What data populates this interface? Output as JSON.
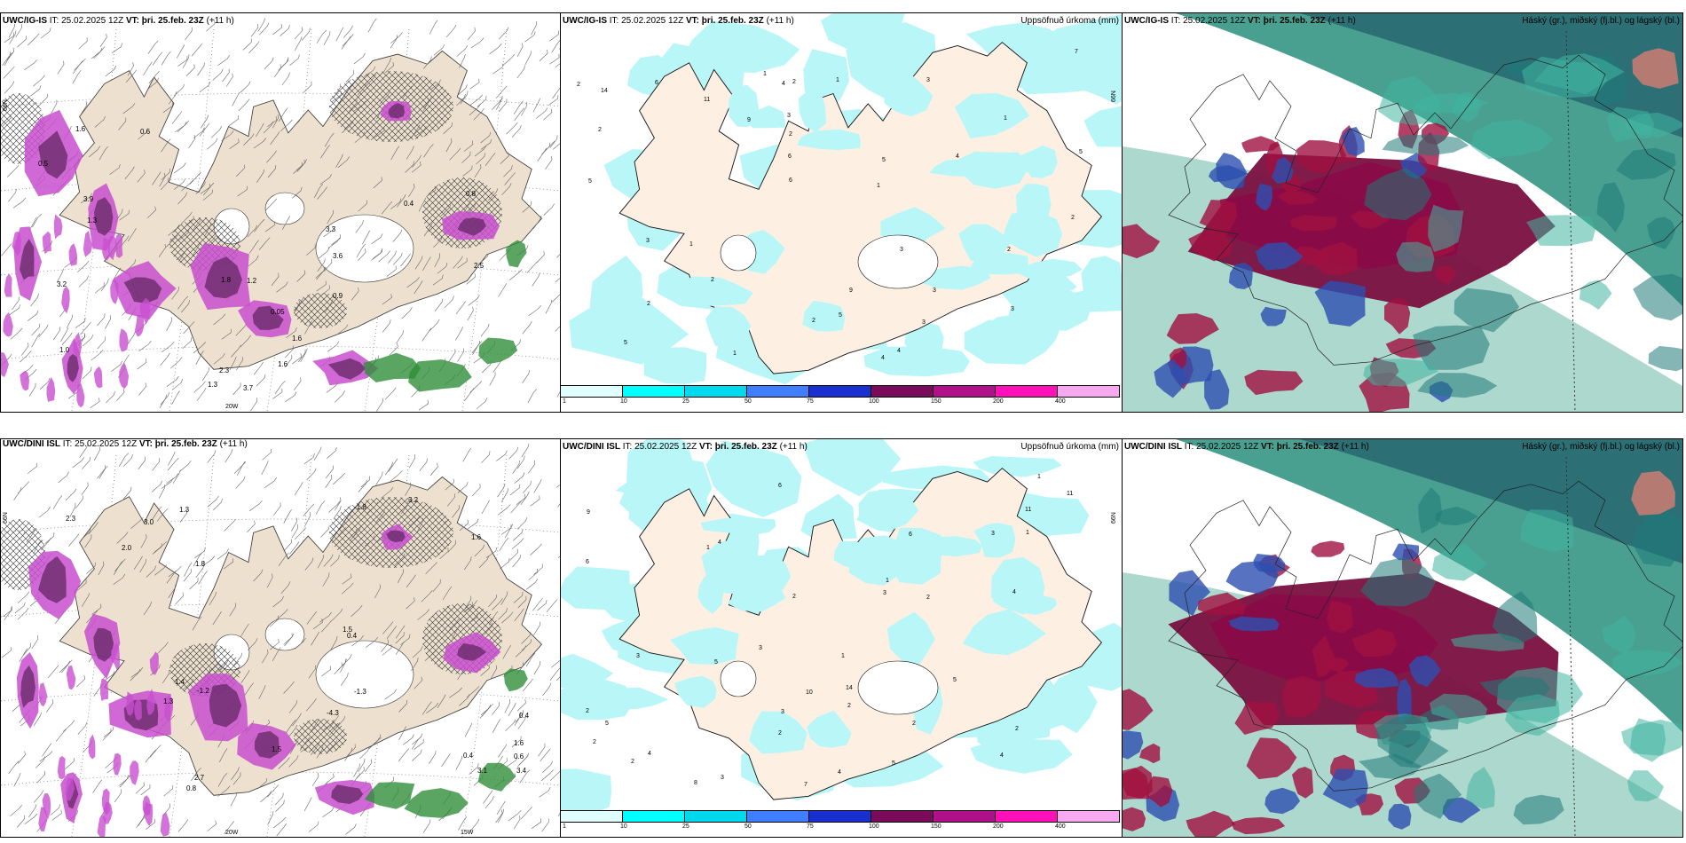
{
  "panels": {
    "p1": {
      "model": "UWC/IG-IS",
      "it_label": "IT:",
      "it": "25.02.2025 12Z",
      "vt_label": "VT:",
      "vt": "þri. 25.feb. 23Z",
      "lead": "(+11 h)",
      "right": ""
    },
    "p2": {
      "model": "UWC/IG-IS",
      "it_label": "IT:",
      "it": "25.02.2025 12Z",
      "vt_label": "VT:",
      "vt": "þri. 25.feb. 23Z",
      "lead": "(+11 h)",
      "right": "Uppsöfnuð úrkoma (mm)"
    },
    "p3": {
      "model": "UWC/IG-IS",
      "it_label": "IT:",
      "it": "25.02.2025 12Z",
      "vt_label": "VT:",
      "vt": "þri. 25.feb. 23Z",
      "lead": "(+11 h)",
      "right": "Háský (gr.), miðský (fj.bl.) og lágský (bl.)"
    },
    "p4": {
      "model": "UWC/DINI ISL",
      "it_label": "IT:",
      "it": "25.02.2025 12Z",
      "vt_label": "VT:",
      "vt": "þri. 25.feb. 23Z",
      "lead": "(+11 h)",
      "right": ""
    },
    "p5": {
      "model": "UWC/DINI ISL",
      "it_label": "IT:",
      "it": "25.02.2025 12Z",
      "vt_label": "VT:",
      "vt": "þri. 25.feb. 23Z",
      "lead": "(+11 h)",
      "right": "Uppsöfnuð úrkoma (mm)"
    },
    "p6": {
      "model": "UWC/DINI ISL",
      "it_label": "IT:",
      "it": "25.02.2025 12Z",
      "vt_label": "VT:",
      "vt": "þri. 25.feb. 23Z",
      "lead": "(+11 h)",
      "right": "Háský (gr.), miðský (fj.bl.) og lágský (bl.)"
    }
  },
  "axis_labels": {
    "lon_20w": "20W",
    "lon_15w": "15W",
    "lat_66n": "66N"
  },
  "colorbar": {
    "ticks": [
      "1",
      "10",
      "25",
      "50",
      "75",
      "100",
      "150",
      "200",
      "400"
    ],
    "colors": [
      "#e0ffff",
      "#00ffff",
      "#00d8ee",
      "#3f7fff",
      "#1a2fd0",
      "#7a0a5a",
      "#b0108a",
      "#ff10b8",
      "#f7a8f0"
    ]
  },
  "precip_labels_top": [
    "2",
    "3",
    "2",
    "4",
    "5",
    "11",
    "6",
    "9",
    "3",
    "1",
    "2",
    "3",
    "1",
    "4",
    "2",
    "6",
    "3",
    "5",
    "7",
    "9",
    "5",
    "14",
    "2",
    "1",
    "3",
    "4",
    "2",
    "5",
    "2",
    "1",
    "3",
    "2",
    "4",
    "6",
    "1",
    "2",
    "3",
    "5",
    "1"
  ],
  "precip_labels_bot": [
    "3",
    "4",
    "2",
    "5",
    "6",
    "11",
    "10",
    "7",
    "2",
    "1",
    "3",
    "4",
    "2",
    "8",
    "5",
    "14",
    "3",
    "2",
    "6",
    "1",
    "4",
    "2",
    "3",
    "5",
    "1",
    "2",
    "9",
    "11",
    "4",
    "2",
    "3",
    "6",
    "1",
    "2",
    "5",
    "3",
    "4",
    "1",
    "2"
  ],
  "temp_labels_top": [
    "0.4",
    "3.7",
    "3.2",
    "2.3",
    "0.5",
    "1.6",
    "0.6",
    "3.3",
    "1.2",
    "3.6",
    "1.6",
    "1.3",
    "0.8",
    "1.0",
    "2.5",
    "1.3",
    "0.9",
    "3.9",
    "1.8",
    "0.05",
    "1.6"
  ],
  "temp_labels_bot": [
    "0.4",
    "1.6",
    "2.0",
    "2.7",
    "3.2",
    "3.0",
    "-1.2",
    "-1.3",
    "1.5",
    "1.8",
    "3.4",
    "1.4",
    "-1.8",
    "2.3",
    "0.6",
    "1.5",
    "1.3",
    "0.4",
    "-4.3",
    "3.1",
    "0.8",
    "1.6",
    "1.3",
    "0.4"
  ],
  "colors": {
    "land": "#ede0cf",
    "land_light": "#fdf0e3",
    "sea_precip": "#b8f6f8",
    "magenta": "#c84fcf",
    "purple": "#6a2a6a",
    "green": "#2f8f3a",
    "teal": "#3a9a88",
    "maroon": "#7a1040"
  }
}
